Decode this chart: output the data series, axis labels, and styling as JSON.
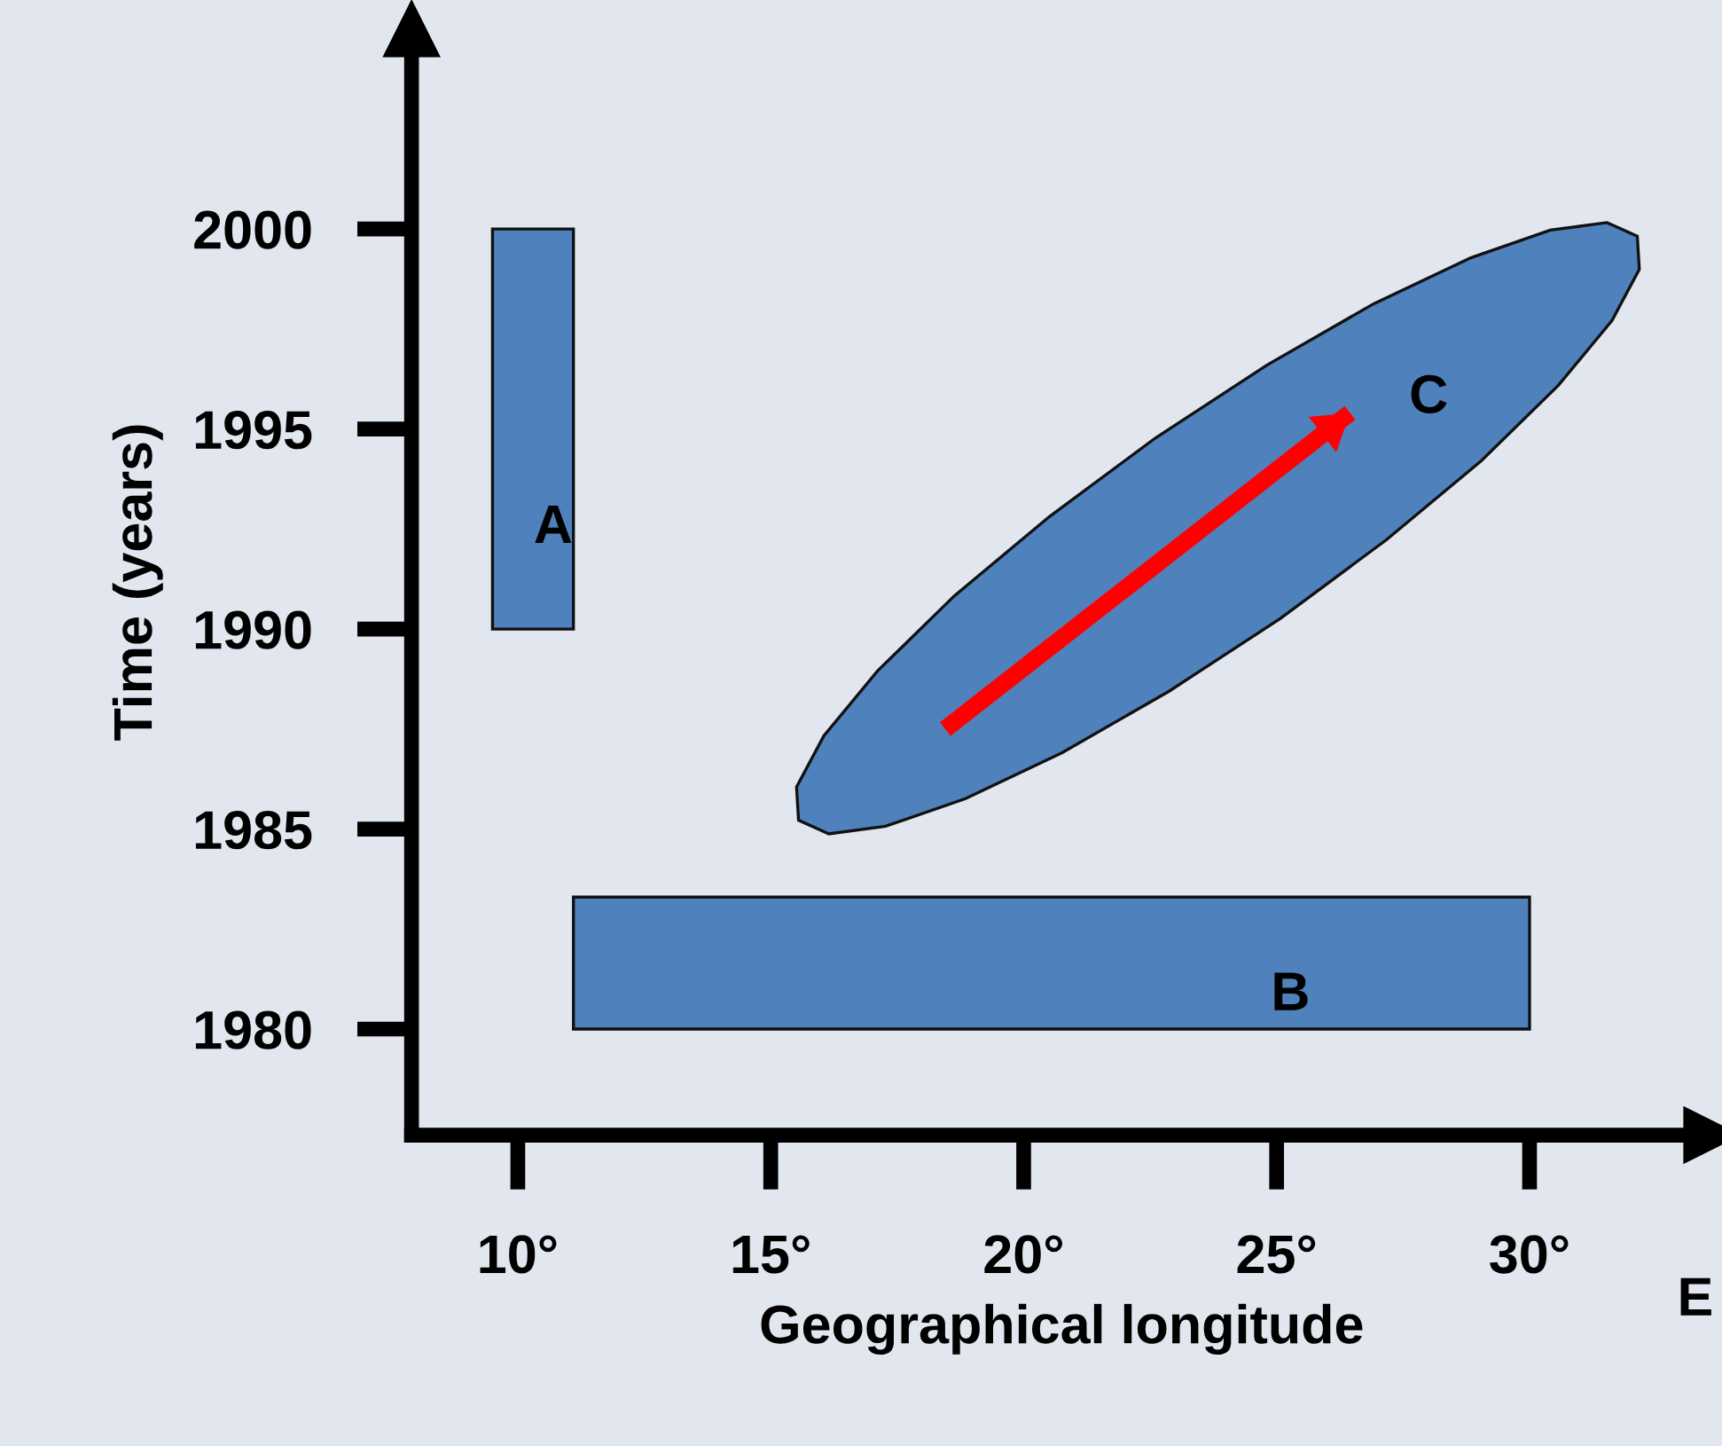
{
  "chart_data": {
    "type": "area",
    "xlabel": "Geographical longitude",
    "ylabel": "Time (years)",
    "xlim": [
      7.9,
      33.6
    ],
    "ylim": [
      1977.35,
      2005
    ],
    "xticks": [
      {
        "value": 10,
        "label": "10°"
      },
      {
        "value": 15,
        "label": "15°"
      },
      {
        "value": 20,
        "label": "20°"
      },
      {
        "value": 25,
        "label": "25°"
      },
      {
        "value": 30,
        "label": "30°"
      }
    ],
    "yticks": [
      1980,
      1985,
      1990,
      1995,
      2000
    ],
    "grid": false,
    "legend": false,
    "series": [
      {
        "name": "A",
        "color": "#4f81bd",
        "x": [
          9.5,
          11.1,
          11.1,
          9.5
        ],
        "values": [
          1990,
          1990,
          2000,
          2000
        ]
      },
      {
        "name": "B",
        "color": "#4f81bd",
        "x": [
          11.1,
          30,
          30,
          11.1
        ],
        "values": [
          1980,
          1980,
          1983.3,
          1983.3
        ]
      },
      {
        "name": "C",
        "color": "#4f81bd",
        "x": [
          32.13,
          31.53,
          30.41,
          28.84,
          26.92,
          24.8,
          22.61,
          20.51,
          18.63,
          17.11,
          16.05,
          15.51,
          15.55,
          16.15,
          17.27,
          18.85,
          20.76,
          22.88,
          25.07,
          27.17,
          29.05,
          30.57,
          31.63,
          32.17
        ],
        "values": [
          1999.82,
          2000.16,
          1999.97,
          1999.28,
          1998.13,
          1996.59,
          1994.78,
          1992.81,
          1990.83,
          1988.95,
          1987.33,
          1986.05,
          1985.22,
          1984.88,
          1985.07,
          1985.76,
          1986.91,
          1988.45,
          1990.26,
          1992.23,
          1994.21,
          1996.09,
          1997.71,
          1998.99
        ]
      },
      {
        "type": "line",
        "color": "#ff0000",
        "x": [
          18.45,
          26.45
        ],
        "values": [
          1987.5,
          1995.4
        ]
      }
    ],
    "annotations": [
      "E"
    ]
  }
}
